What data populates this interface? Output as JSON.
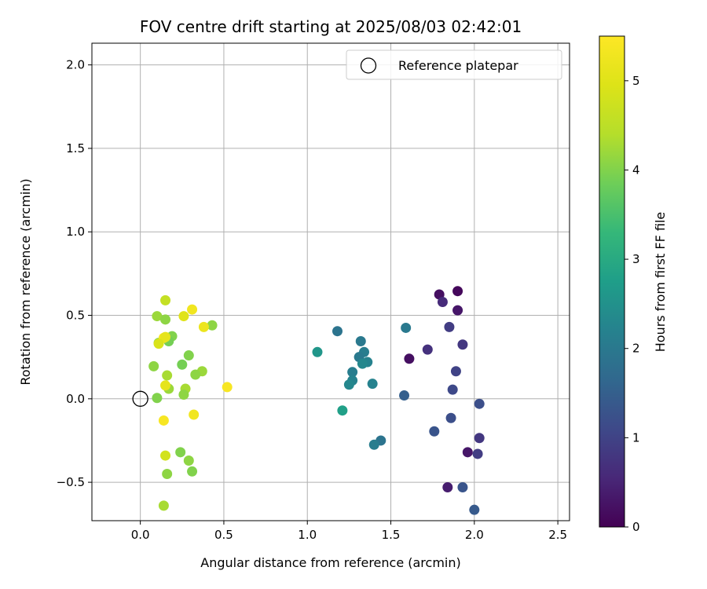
{
  "chart_data": {
    "type": "scatter",
    "title": "FOV centre drift starting at 2025/08/03 02:42:01",
    "xlabel": "Angular distance from reference (arcmin)",
    "ylabel": "Rotation from reference (arcmin)",
    "xlim": [
      -0.29,
      2.57
    ],
    "ylim": [
      -0.73,
      2.13
    ],
    "xticks": [
      0.0,
      0.5,
      1.0,
      1.5,
      2.0,
      2.5
    ],
    "xtick_labels": [
      "0.0",
      "0.5",
      "1.0",
      "1.5",
      "2.0",
      "2.5"
    ],
    "yticks": [
      -0.5,
      0.0,
      0.5,
      1.0,
      1.5,
      2.0
    ],
    "ytick_labels": [
      "−0.5",
      "0.0",
      "0.5",
      "1.0",
      "1.5",
      "2.0"
    ],
    "grid": true,
    "legend": {
      "placement": "top-right",
      "entries": [
        "Reference platepar"
      ]
    },
    "reference_point": {
      "x": 0.0,
      "y": 0.0
    },
    "colorbar": {
      "label": "Hours from first FF file",
      "colormap": "viridis",
      "range": [
        0,
        5.5
      ],
      "ticks": [
        0,
        1,
        2,
        3,
        4,
        5
      ],
      "tick_labels": [
        "0",
        "1",
        "2",
        "3",
        "4",
        "5"
      ]
    },
    "points": [
      {
        "x": 1.9,
        "y": 0.645,
        "c": 0.1
      },
      {
        "x": 1.79,
        "y": 0.625,
        "c": 0.2
      },
      {
        "x": 1.9,
        "y": 0.53,
        "c": 0.3
      },
      {
        "x": 1.61,
        "y": 0.24,
        "c": 0.2
      },
      {
        "x": 1.96,
        "y": -0.32,
        "c": 0.3
      },
      {
        "x": 1.84,
        "y": -0.53,
        "c": 0.4
      },
      {
        "x": 1.81,
        "y": 0.58,
        "c": 0.6
      },
      {
        "x": 1.72,
        "y": 0.295,
        "c": 0.7
      },
      {
        "x": 1.93,
        "y": 0.325,
        "c": 0.8
      },
      {
        "x": 1.85,
        "y": 0.43,
        "c": 0.9
      },
      {
        "x": 2.03,
        "y": -0.235,
        "c": 0.8
      },
      {
        "x": 2.02,
        "y": -0.33,
        "c": 0.9
      },
      {
        "x": 1.89,
        "y": 0.165,
        "c": 1.0
      },
      {
        "x": 1.87,
        "y": 0.055,
        "c": 1.1
      },
      {
        "x": 2.03,
        "y": -0.03,
        "c": 1.2
      },
      {
        "x": 1.86,
        "y": -0.115,
        "c": 1.2
      },
      {
        "x": 1.76,
        "y": -0.195,
        "c": 1.3
      },
      {
        "x": 1.93,
        "y": -0.53,
        "c": 1.3
      },
      {
        "x": 2.0,
        "y": -0.665,
        "c": 1.4
      },
      {
        "x": 1.58,
        "y": 0.02,
        "c": 1.5
      },
      {
        "x": 1.59,
        "y": 0.425,
        "c": 2.0
      },
      {
        "x": 1.18,
        "y": 0.405,
        "c": 1.9
      },
      {
        "x": 1.32,
        "y": 0.345,
        "c": 2.0
      },
      {
        "x": 1.34,
        "y": 0.28,
        "c": 2.1
      },
      {
        "x": 1.31,
        "y": 0.25,
        "c": 2.0
      },
      {
        "x": 1.36,
        "y": 0.22,
        "c": 2.2
      },
      {
        "x": 1.33,
        "y": 0.21,
        "c": 2.3
      },
      {
        "x": 1.27,
        "y": 0.16,
        "c": 2.1
      },
      {
        "x": 1.27,
        "y": 0.11,
        "c": 2.2
      },
      {
        "x": 1.25,
        "y": 0.085,
        "c": 2.3
      },
      {
        "x": 1.39,
        "y": 0.09,
        "c": 2.2
      },
      {
        "x": 1.44,
        "y": -0.25,
        "c": 1.9
      },
      {
        "x": 1.4,
        "y": -0.275,
        "c": 2.1
      },
      {
        "x": 1.06,
        "y": 0.28,
        "c": 2.6
      },
      {
        "x": 1.21,
        "y": -0.07,
        "c": 2.8
      },
      {
        "x": 0.15,
        "y": 0.59,
        "c": 4.6
      },
      {
        "x": 0.1,
        "y": 0.495,
        "c": 4.2
      },
      {
        "x": 0.15,
        "y": 0.475,
        "c": 4.1
      },
      {
        "x": 0.19,
        "y": 0.375,
        "c": 4.0
      },
      {
        "x": 0.17,
        "y": 0.345,
        "c": 3.9
      },
      {
        "x": 0.11,
        "y": 0.335,
        "c": 4.0
      },
      {
        "x": 0.43,
        "y": 0.44,
        "c": 4.1
      },
      {
        "x": 0.29,
        "y": 0.26,
        "c": 4.0
      },
      {
        "x": 0.25,
        "y": 0.205,
        "c": 3.9
      },
      {
        "x": 0.08,
        "y": 0.195,
        "c": 4.1
      },
      {
        "x": 0.37,
        "y": 0.165,
        "c": 4.2
      },
      {
        "x": 0.33,
        "y": 0.145,
        "c": 4.1
      },
      {
        "x": 0.16,
        "y": 0.14,
        "c": 4.3
      },
      {
        "x": 0.17,
        "y": 0.06,
        "c": 4.2
      },
      {
        "x": 0.27,
        "y": 0.06,
        "c": 4.3
      },
      {
        "x": 0.26,
        "y": 0.025,
        "c": 4.1
      },
      {
        "x": 0.1,
        "y": 0.005,
        "c": 4.0
      },
      {
        "x": 0.24,
        "y": -0.32,
        "c": 4.0
      },
      {
        "x": 0.29,
        "y": -0.37,
        "c": 4.1
      },
      {
        "x": 0.31,
        "y": -0.435,
        "c": 4.0
      },
      {
        "x": 0.16,
        "y": -0.45,
        "c": 4.1
      },
      {
        "x": 0.14,
        "y": -0.64,
        "c": 4.3
      },
      {
        "x": 0.31,
        "y": 0.535,
        "c": 5.3
      },
      {
        "x": 0.26,
        "y": 0.495,
        "c": 5.0
      },
      {
        "x": 0.38,
        "y": 0.43,
        "c": 5.2
      },
      {
        "x": 0.14,
        "y": 0.365,
        "c": 5.4
      },
      {
        "x": 0.15,
        "y": 0.37,
        "c": 5.1
      },
      {
        "x": 0.11,
        "y": 0.33,
        "c": 4.9
      },
      {
        "x": 0.52,
        "y": 0.07,
        "c": 5.4
      },
      {
        "x": 0.15,
        "y": 0.08,
        "c": 5.1
      },
      {
        "x": 0.32,
        "y": -0.095,
        "c": 5.3
      },
      {
        "x": 0.14,
        "y": -0.13,
        "c": 5.4
      },
      {
        "x": 0.15,
        "y": -0.34,
        "c": 4.8
      }
    ]
  }
}
